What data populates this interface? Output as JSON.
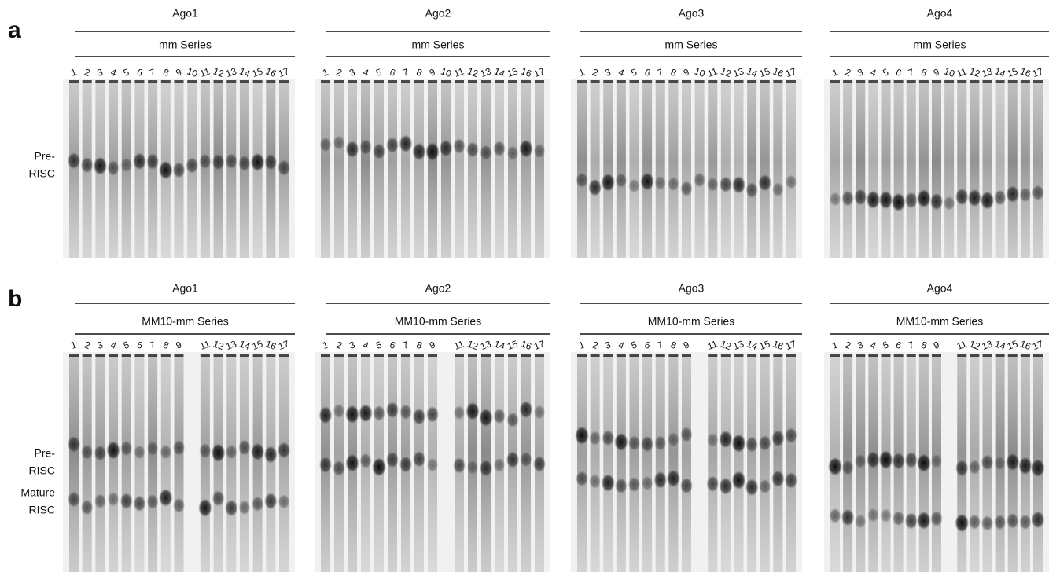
{
  "panels": [
    {
      "label": "a",
      "side_labels": [
        [
          "Pre-",
          "RISC"
        ]
      ],
      "gels": [
        {
          "title": "Ago1",
          "series": "mm Series",
          "lanes": [
            "1",
            "2",
            "3",
            "4",
            "5",
            "6",
            "7",
            "8",
            "9",
            "10",
            "11",
            "12",
            "13",
            "14",
            "15",
            "16",
            "17"
          ]
        },
        {
          "title": "Ago2",
          "series": "mm Series",
          "lanes": [
            "1",
            "2",
            "3",
            "4",
            "5",
            "6",
            "7",
            "8",
            "9",
            "10",
            "11",
            "12",
            "13",
            "14",
            "15",
            "16",
            "17"
          ]
        },
        {
          "title": "Ago3",
          "series": "mm Series",
          "lanes": [
            "1",
            "2",
            "3",
            "4",
            "5",
            "6",
            "7",
            "8",
            "9",
            "10",
            "11",
            "12",
            "13",
            "14",
            "15",
            "16",
            "17"
          ]
        },
        {
          "title": "Ago4",
          "series": "mm Series",
          "lanes": [
            "1",
            "2",
            "3",
            "4",
            "5",
            "6",
            "7",
            "8",
            "9",
            "10",
            "11",
            "12",
            "13",
            "14",
            "15",
            "16",
            "17"
          ]
        }
      ]
    },
    {
      "label": "b",
      "side_labels": [
        [
          "Pre-",
          "RISC"
        ],
        [
          "Mature",
          "RISC"
        ]
      ],
      "gels": [
        {
          "title": "Ago1",
          "series": "MM10-mm Series",
          "lanes": [
            "1",
            "2",
            "3",
            "4",
            "5",
            "6",
            "7",
            "8",
            "9",
            "11",
            "12",
            "13",
            "14",
            "15",
            "16",
            "17"
          ]
        },
        {
          "title": "Ago2",
          "series": "MM10-mm Series",
          "lanes": [
            "1",
            "2",
            "3",
            "4",
            "5",
            "6",
            "7",
            "8",
            "9",
            "11",
            "12",
            "13",
            "14",
            "15",
            "16",
            "17"
          ]
        },
        {
          "title": "Ago3",
          "series": "MM10-mm Series",
          "lanes": [
            "1",
            "2",
            "3",
            "4",
            "5",
            "6",
            "7",
            "8",
            "9",
            "11",
            "12",
            "13",
            "14",
            "15",
            "16",
            "17"
          ]
        },
        {
          "title": "Ago4",
          "series": "MM10-mm Series",
          "lanes": [
            "1",
            "2",
            "3",
            "4",
            "5",
            "6",
            "7",
            "8",
            "9",
            "11",
            "12",
            "13",
            "14",
            "15",
            "16",
            "17"
          ]
        }
      ]
    }
  ]
}
